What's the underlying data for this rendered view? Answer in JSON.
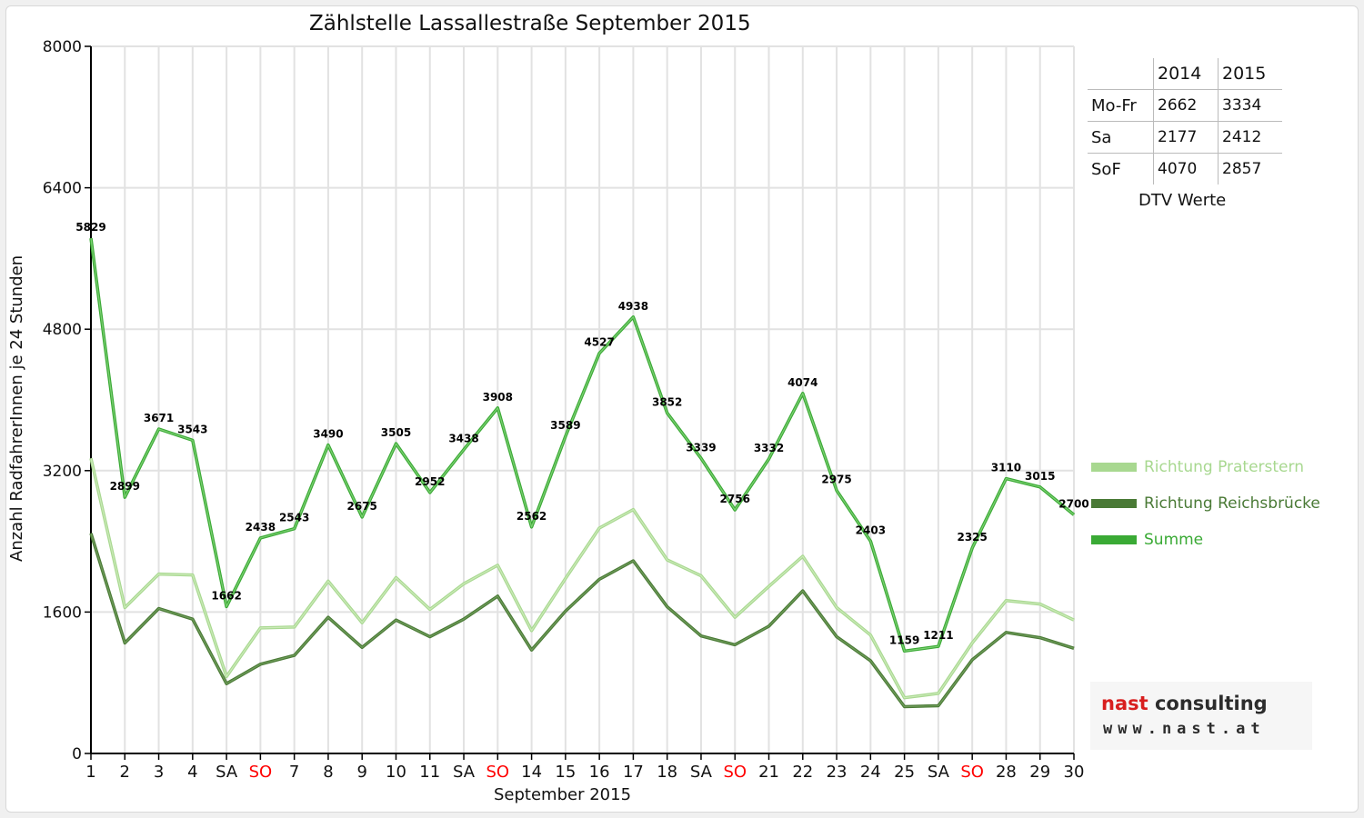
{
  "chart_data": {
    "type": "line",
    "title": "Zählstelle Lassallestraße September 2015",
    "xlabel": "September 2015",
    "ylabel": "Anzahl RadfahrerInnen je 24 Stunden",
    "ylim": [
      0,
      8000
    ],
    "yticks": [
      "0",
      "1600",
      "3200",
      "4800",
      "6400",
      "8000"
    ],
    "grid": true,
    "legend_position": "right",
    "categories": [
      "1",
      "2",
      "3",
      "4",
      "SA",
      "SO",
      "7",
      "8",
      "9",
      "10",
      "11",
      "SA",
      "SO",
      "14",
      "15",
      "16",
      "17",
      "18",
      "SA",
      "SO",
      "21",
      "22",
      "23",
      "24",
      "25",
      "SA",
      "SO",
      "28",
      "29",
      "30"
    ],
    "category_highlight": [
      "",
      "",
      "",
      "",
      "",
      "#ff0000",
      "",
      "",
      "",
      "",
      "",
      "",
      "#ff0000",
      "",
      "",
      "",
      "",
      "",
      "",
      "#ff0000",
      "",
      "",
      "",
      "",
      "",
      "",
      "#ff0000",
      "",
      "",
      ""
    ],
    "series": [
      {
        "name": "Richtung Praterstern",
        "color": "#a8d890",
        "values": [
          3340,
          1650,
          2030,
          2020,
          870,
          1420,
          1430,
          1950,
          1480,
          1990,
          1630,
          1920,
          2130,
          1390,
          1980,
          2550,
          2760,
          2190,
          2010,
          1540,
          1890,
          2230,
          1650,
          1340,
          630,
          680,
          1250,
          1730,
          1690,
          1510
        ],
        "labels": [
          "",
          "",
          "",
          "",
          "",
          "",
          "",
          "",
          "",
          "",
          "",
          "",
          "",
          "",
          "",
          "",
          "",
          "",
          "",
          "",
          "",
          "",
          "",
          "",
          "",
          "",
          "",
          "",
          "",
          ""
        ]
      },
      {
        "name": "Richtung Reichsbrücke",
        "color": "#4a7a36",
        "values": [
          2490,
          1250,
          1640,
          1520,
          790,
          1010,
          1110,
          1540,
          1200,
          1510,
          1320,
          1520,
          1780,
          1170,
          1610,
          1970,
          2180,
          1660,
          1330,
          1230,
          1440,
          1840,
          1320,
          1050,
          530,
          540,
          1060,
          1370,
          1310,
          1190
        ],
        "labels": [
          "",
          "",
          "",
          "",
          "",
          "",
          "",
          "",
          "",
          "",
          "",
          "",
          "",
          "",
          "",
          "",
          "",
          "",
          "",
          "",
          "",
          "",
          "",
          "",
          "",
          "",
          "",
          "",
          "",
          ""
        ]
      },
      {
        "name": "Summe",
        "color": "#3aaa35",
        "values": [
          5829,
          2899,
          3671,
          3543,
          1662,
          2438,
          2543,
          3490,
          2675,
          3505,
          2952,
          3438,
          3908,
          2562,
          3589,
          4527,
          4938,
          3852,
          3339,
          2756,
          3332,
          4074,
          2975,
          2403,
          1159,
          1211,
          2325,
          3110,
          3015,
          2700
        ],
        "labels": [
          "5829",
          "2899",
          "3671",
          "3543",
          "1662",
          "2438",
          "2543",
          "3490",
          "2675",
          "3505",
          "2952",
          "3438",
          "3908",
          "2562",
          "3589",
          "4527",
          "4938",
          "3852",
          "3339",
          "2756",
          "3332",
          "4074",
          "2975",
          "2403",
          "1159",
          "1211",
          "2325",
          "3110",
          "3015",
          "2700"
        ]
      }
    ]
  },
  "dtv_table": {
    "columns": [
      "",
      "2014",
      "2015"
    ],
    "rows": [
      {
        "label": "Mo-Fr",
        "v2014": "2662",
        "v2015": "3334"
      },
      {
        "label": "Sa",
        "v2014": "2177",
        "v2015": "2412"
      },
      {
        "label": "SoF",
        "v2014": "4070",
        "v2015": "2857"
      }
    ],
    "caption": "DTV Werte"
  },
  "legend": [
    {
      "label": "Richtung Praterstern",
      "color": "#a8d890"
    },
    {
      "label": "Richtung Reichsbrücke",
      "color": "#4a7a36"
    },
    {
      "label": "Summe",
      "color": "#3aaa35"
    }
  ],
  "logo": {
    "name_part1": "nast",
    "name_part2": " consulting",
    "url": "www.nast.at",
    "color_primary": "#d81e1e",
    "color_secondary": "#2c2c2c"
  }
}
